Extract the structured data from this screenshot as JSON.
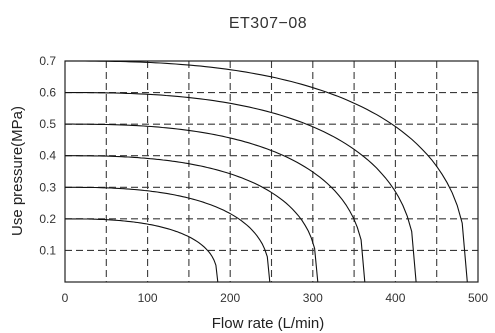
{
  "chart_data": {
    "type": "line",
    "title": "ET307−08",
    "xlabel": "Flow rate (L/min)",
    "ylabel": "Use pressure(MPa)",
    "xlim": [
      0,
      500
    ],
    "ylim": [
      0,
      0.7
    ],
    "x_ticks": [
      "0",
      "100",
      "200",
      "300",
      "400",
      "500"
    ],
    "y_ticks": [
      "0.1",
      "0.2",
      "0.3",
      "0.4",
      "0.5",
      "0.6",
      "0.7"
    ],
    "grid": true,
    "series": [
      {
        "set_pressure": 0.2,
        "max_flow": 185
      },
      {
        "set_pressure": 0.3,
        "max_flow": 248
      },
      {
        "set_pressure": 0.4,
        "max_flow": 306
      },
      {
        "set_pressure": 0.5,
        "max_flow": 363
      },
      {
        "set_pressure": 0.6,
        "max_flow": 425
      },
      {
        "set_pressure": 0.7,
        "max_flow": 487
      }
    ]
  }
}
